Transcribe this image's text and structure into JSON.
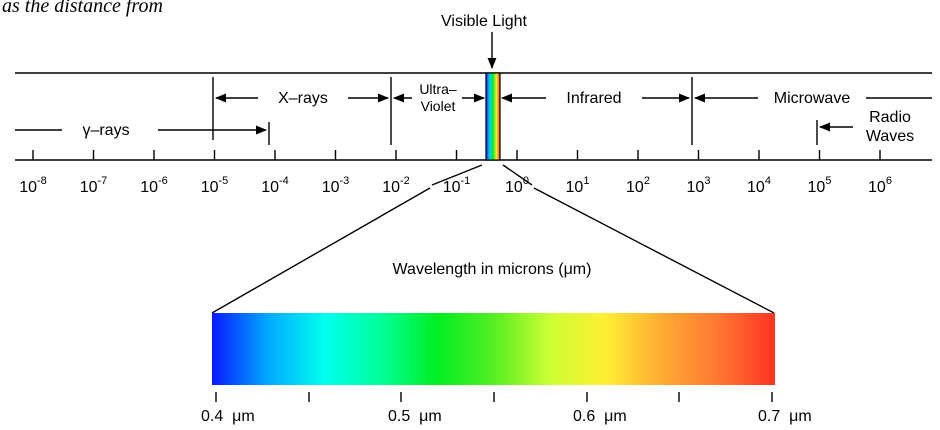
{
  "caption": "as the distance from",
  "visible_light_label": "Visible Light",
  "regions": {
    "gamma": "γ–rays",
    "xrays": "X–rays",
    "uv_line1": "Ultra–",
    "uv_line2": "Violet",
    "infrared": "Infrared",
    "microwave": "Microwave",
    "radio_line1": "Radio",
    "radio_line2": "Waves"
  },
  "scale_base": "10",
  "scale_exponents": [
    "-8",
    "-7",
    "-6",
    "-5",
    "-4",
    "-3",
    "-2",
    "-1",
    "0",
    "1",
    "2",
    "3",
    "4",
    "5",
    "6"
  ],
  "zoom_label": "Wavelength in microns (μm)",
  "visible_scale_labels": [
    "0.4  μm",
    "0.5  μm",
    "0.6  μm",
    "0.7  μm"
  ],
  "spectrum_colors": [
    "#0a1aff",
    "#00aaff",
    "#00ffee",
    "#00ff99",
    "#00ee22",
    "#55ee22",
    "#ccff33",
    "#ffee33",
    "#ffaa33",
    "#ff7733",
    "#ff3322"
  ]
}
